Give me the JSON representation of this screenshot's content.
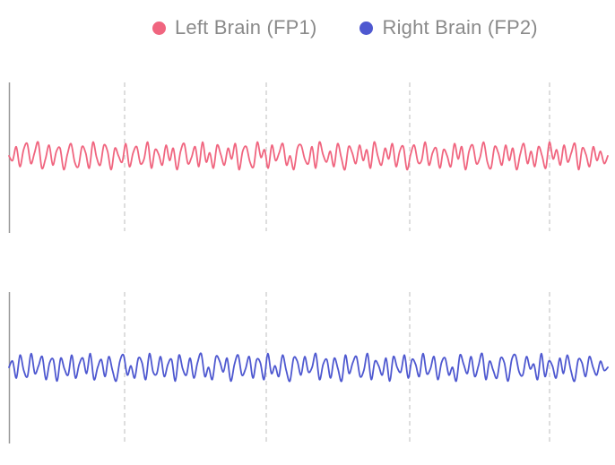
{
  "legend": {
    "items": [
      {
        "label": "Left Brain (FP1)",
        "color": "#f0657f"
      },
      {
        "label": "Right Brain (FP2)",
        "color": "#4e58d0"
      }
    ]
  },
  "colors": {
    "fp1": "#f0657f",
    "fp2": "#4e58d0",
    "axis": "#999999",
    "grid": "#c8c8c8"
  },
  "chart_data": [
    {
      "type": "line",
      "series": [
        {
          "name": "Left Brain (FP1)",
          "values": [
            0.0,
            -0.3,
            0.6,
            -0.7,
            0.4,
            0.8,
            -0.5,
            0.2,
            0.9,
            -0.8,
            -0.2,
            0.7,
            -0.6,
            0.3,
            0.5,
            -0.9,
            0.1,
            0.8,
            -0.4,
            -0.7,
            0.6,
            0.2,
            -0.8,
            0.9,
            -0.1,
            -0.6,
            0.7,
            0.3,
            -0.9,
            0.5,
            0.0,
            -0.4,
            0.8,
            -0.7,
            0.2,
            0.6,
            -0.5,
            -0.2,
            0.9,
            -0.8,
            0.4,
            0.1,
            -0.6,
            0.7,
            -0.3,
            0.5,
            -0.9,
            0.3,
            0.8,
            -0.5,
            -0.1,
            0.6,
            -0.7,
            0.9,
            -0.4,
            0.2,
            -0.8,
            0.7,
            0.1,
            -0.6,
            0.5,
            -0.2,
            0.8,
            -0.9,
            0.3,
            0.6,
            -0.4,
            -0.7,
            0.9,
            -0.1,
            0.4,
            -0.8,
            0.7,
            -0.3,
            0.2,
            0.8,
            -0.6,
            0.0,
            -0.9,
            0.5,
            0.7,
            -0.2,
            -0.5,
            0.6,
            -0.8,
            0.9,
            0.1,
            -0.4,
            0.3,
            -0.7,
            0.8,
            -0.1,
            -0.9,
            0.6,
            0.2,
            -0.5,
            0.7,
            -0.3,
            0.4,
            -0.8,
            0.9,
            0.0,
            -0.6,
            0.5,
            -0.2,
            0.8,
            -0.7,
            0.3,
            0.6,
            -0.9,
            0.1,
            0.7,
            -0.4,
            -0.3,
            0.9,
            -0.6,
            0.2,
            0.5,
            -0.8,
            0.4,
            0.0,
            -0.7,
            0.8,
            -0.2,
            0.6,
            -0.9,
            0.3,
            0.7,
            -0.5,
            -0.1,
            0.9,
            -0.4,
            -0.8,
            0.6,
            0.2,
            -0.6,
            0.7,
            -0.3,
            0.5,
            -0.9,
            0.1,
            0.8,
            -0.5,
            0.3,
            -0.7,
            0.6,
            0.0,
            -0.8,
            0.9,
            -0.2,
            0.4,
            -0.6,
            0.7,
            -0.4,
            0.2,
            0.8,
            -0.9,
            0.5,
            0.1,
            -0.7,
            0.6,
            -0.3,
            0.3,
            -0.5,
            0.0
          ]
        }
      ],
      "ylim": [
        -1.6,
        1.6
      ]
    },
    {
      "type": "line",
      "series": [
        {
          "name": "Right Brain (FP2)",
          "values": [
            0.0,
            0.4,
            -0.7,
            0.8,
            -0.2,
            -0.6,
            0.9,
            -0.4,
            0.1,
            0.7,
            -0.8,
            0.3,
            0.5,
            -0.9,
            0.6,
            -0.1,
            -0.5,
            0.8,
            -0.7,
            0.2,
            0.6,
            -0.4,
            0.9,
            -0.8,
            0.0,
            0.5,
            -0.6,
            0.7,
            -0.2,
            -0.9,
            0.4,
            0.8,
            -0.5,
            0.1,
            -0.7,
            0.6,
            0.3,
            -0.8,
            0.9,
            -0.3,
            -0.4,
            0.7,
            -0.6,
            0.2,
            0.5,
            -0.9,
            0.8,
            -0.1,
            -0.5,
            0.6,
            -0.7,
            0.3,
            0.9,
            -0.6,
            0.0,
            -0.8,
            0.7,
            0.4,
            -0.3,
            0.6,
            -0.9,
            0.2,
            0.8,
            -0.5,
            -0.1,
            0.7,
            -0.7,
            0.5,
            0.3,
            -0.8,
            0.9,
            -0.4,
            0.1,
            -0.6,
            0.8,
            -0.2,
            -0.9,
            0.6,
            0.4,
            -0.5,
            0.7,
            -0.3,
            0.0,
            0.9,
            -0.8,
            0.2,
            0.5,
            -0.7,
            0.6,
            -0.1,
            -0.9,
            0.8,
            -0.4,
            0.3,
            0.7,
            -0.6,
            -0.2,
            0.9,
            -0.8,
            0.4,
            0.1,
            -0.5,
            0.6,
            -0.9,
            0.7,
            0.0,
            -0.3,
            0.8,
            -0.7,
            0.5,
            0.2,
            -0.6,
            0.9,
            -0.4,
            -0.1,
            0.7,
            -0.8,
            0.3,
            0.6,
            -0.5,
            0.0,
            -0.9,
            0.8,
            0.2,
            -0.4,
            0.7,
            -0.6,
            0.1,
            0.9,
            -0.8,
            0.4,
            -0.2,
            -0.7,
            0.6,
            0.3,
            -0.9,
            0.5,
            0.8,
            -0.3,
            -0.5,
            0.7,
            -0.1,
            0.2,
            -0.8,
            0.9,
            -0.6,
            0.4,
            0.1,
            -0.7,
            0.6,
            -0.4,
            0.8,
            -0.2,
            -0.9,
            0.5,
            0.3,
            -0.6,
            0.7,
            0.0,
            -0.5,
            0.4,
            -0.2,
            0.0
          ]
        }
      ],
      "ylim": [
        -1.6,
        1.6
      ]
    }
  ]
}
